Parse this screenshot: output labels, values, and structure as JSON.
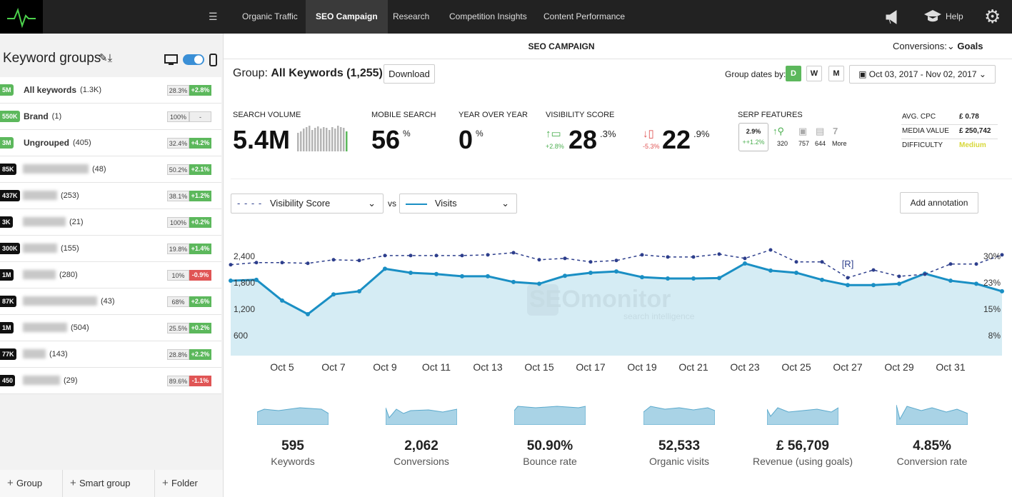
{
  "nav": {
    "items": [
      "Organic Traffic",
      "SEO Campaign",
      "Research",
      "Competition Insights",
      "Content Performance"
    ],
    "active": 1,
    "help": "Help"
  },
  "sidebar": {
    "title": "Keyword groups",
    "groups": [
      {
        "badge": "5M",
        "name": "All keywords",
        "count": "(1.3K)",
        "share": "28.3%",
        "change": "+2.8%"
      },
      {
        "badge": "550K",
        "name": "Brand",
        "count": "(1)",
        "share": "100%",
        "change": "-"
      },
      {
        "badge": "3M",
        "name": "Ungrouped",
        "count": "(405)",
        "share": "32.4%",
        "change": "+4.2%"
      },
      {
        "badge": "85K",
        "count": "(48)",
        "share": "50.2%",
        "change": "+2.1%"
      },
      {
        "badge": "437K",
        "count": "(253)",
        "share": "38.1%",
        "change": "+1.2%"
      },
      {
        "badge": "3K",
        "count": "(21)",
        "share": "100%",
        "change": "+0.2%"
      },
      {
        "badge": "300K",
        "count": "(155)",
        "share": "19.8%",
        "change": "+1.4%"
      },
      {
        "badge": "1M",
        "count": "(280)",
        "share": "10%",
        "change": "-0.9%"
      },
      {
        "badge": "87K",
        "count": "(43)",
        "share": "68%",
        "change": "+2.6%"
      },
      {
        "badge": "1M",
        "count": "(504)",
        "share": "25.5%",
        "change": "+0.2%"
      },
      {
        "badge": "77K",
        "count": "(143)",
        "share": "28.8%",
        "change": "+2.2%"
      },
      {
        "badge": "450",
        "count": "(29)",
        "share": "89.6%",
        "change": "-1.1%"
      }
    ],
    "footer": [
      "Group",
      "Smart group",
      "Folder"
    ]
  },
  "header": {
    "title": "SEO CAMPAIGN",
    "conversions_label": "Conversions:",
    "conversions_value": "Goals"
  },
  "group": {
    "label": "Group:",
    "name": "All Keywords (1,255)",
    "download": "Download",
    "dates_label": "Group dates by:",
    "date_options": [
      "D",
      "W",
      "M"
    ],
    "date_range": "Oct 03, 2017 - Nov 02, 2017"
  },
  "metrics": {
    "search_volume": {
      "label": "SEARCH VOLUME",
      "value": "5.4M"
    },
    "mobile_search": {
      "label": "MOBILE SEARCH",
      "value": "56",
      "unit": "%"
    },
    "year_over_year": {
      "label": "YEAR OVER YEAR",
      "value": "0",
      "unit": "%"
    },
    "visibility": {
      "label": "VISIBILITY SCORE",
      "desktop": {
        "value": "28",
        "decimal": ".3%",
        "change": "+2.8%"
      },
      "mobile": {
        "value": "22",
        "decimal": ".9%",
        "change": "-5.3%"
      }
    },
    "serp": {
      "label": "SERP FEATURES",
      "share": "2.9%",
      "change": "++1.2%",
      "counts": [
        "320",
        "757",
        "644"
      ],
      "more_count": "7",
      "more": "More"
    },
    "costs": [
      {
        "label": "AVG. CPC",
        "value": "£ 0.78"
      },
      {
        "label": "MEDIA VALUE",
        "value": "£ 250,742"
      },
      {
        "label": "DIFFICULTY",
        "value": "Medium"
      }
    ]
  },
  "chart_controls": {
    "vs": "vs",
    "add_annotation": "Add annotation"
  },
  "chart_data": {
    "type": "line",
    "categories": [
      null,
      null,
      "Oct 5",
      null,
      "Oct 7",
      null,
      "Oct 9",
      null,
      "Oct 11",
      null,
      "Oct 13",
      null,
      "Oct 15",
      null,
      "Oct 17",
      null,
      "Oct 19",
      null,
      "Oct 21",
      null,
      "Oct 23",
      null,
      "Oct 25",
      null,
      "Oct 27",
      null,
      "Oct 29",
      null,
      "Oct 31",
      null,
      null
    ],
    "series": [
      {
        "name": "Visibility Score",
        "color": "#2d3e8c",
        "axis": "y2",
        "dashed": true,
        "values": [
          27.6,
          28.2,
          28.2,
          28.0,
          29.0,
          28.8,
          30.2,
          30.2,
          30.2,
          30.2,
          30.4,
          31.0,
          29.0,
          29.4,
          28.4,
          28.8,
          30.4,
          29.8,
          29.8,
          30.6,
          29.4,
          31.8,
          28.4,
          28.4,
          23.9,
          26.1,
          24.3,
          24.9,
          27.8,
          27.8,
          30.4
        ]
      },
      {
        "name": "Visits",
        "color": "#1a8fc4",
        "fill": "#d5ecf4",
        "values": [
          1850,
          1870,
          1400,
          1090,
          1540,
          1610,
          2120,
          2030,
          2000,
          1950,
          1950,
          1820,
          1780,
          1960,
          2030,
          2060,
          1930,
          1900,
          1900,
          1910,
          2240,
          2080,
          2030,
          1870,
          1750,
          1750,
          1780,
          2010,
          1850,
          1780,
          1610
        ]
      }
    ],
    "ylim": [
      150,
      2580
    ],
    "yticks": [
      600,
      {
        "value": 1200,
        "label": "1,200"
      },
      {
        "value": 1800,
        "label": "1,800"
      },
      {
        "value": 2400,
        "label": "2,400"
      }
    ],
    "y2lim": [
      1.8,
      32.2
    ],
    "y2ticks": [
      {
        "value": 7.5,
        "label": "8%"
      },
      {
        "value": 15,
        "label": "15%"
      },
      {
        "value": 22.5,
        "label": "23%"
      },
      {
        "value": 30,
        "label": "30%"
      }
    ],
    "grid": false,
    "annotation": "[R]",
    "watermark": "SEOmonitor",
    "watermark_sub": "search intelligence"
  },
  "kpis": [
    {
      "value": "595",
      "label": "Keywords"
    },
    {
      "value": "2,062",
      "label": "Conversions"
    },
    {
      "value": "50.90%",
      "label": "Bounce rate"
    },
    {
      "value": "52,533",
      "label": "Organic visits"
    },
    {
      "value": "£ 56,709",
      "label": "Revenue (using goals)"
    },
    {
      "value": "4.85%",
      "label": "Conversion rate"
    }
  ]
}
